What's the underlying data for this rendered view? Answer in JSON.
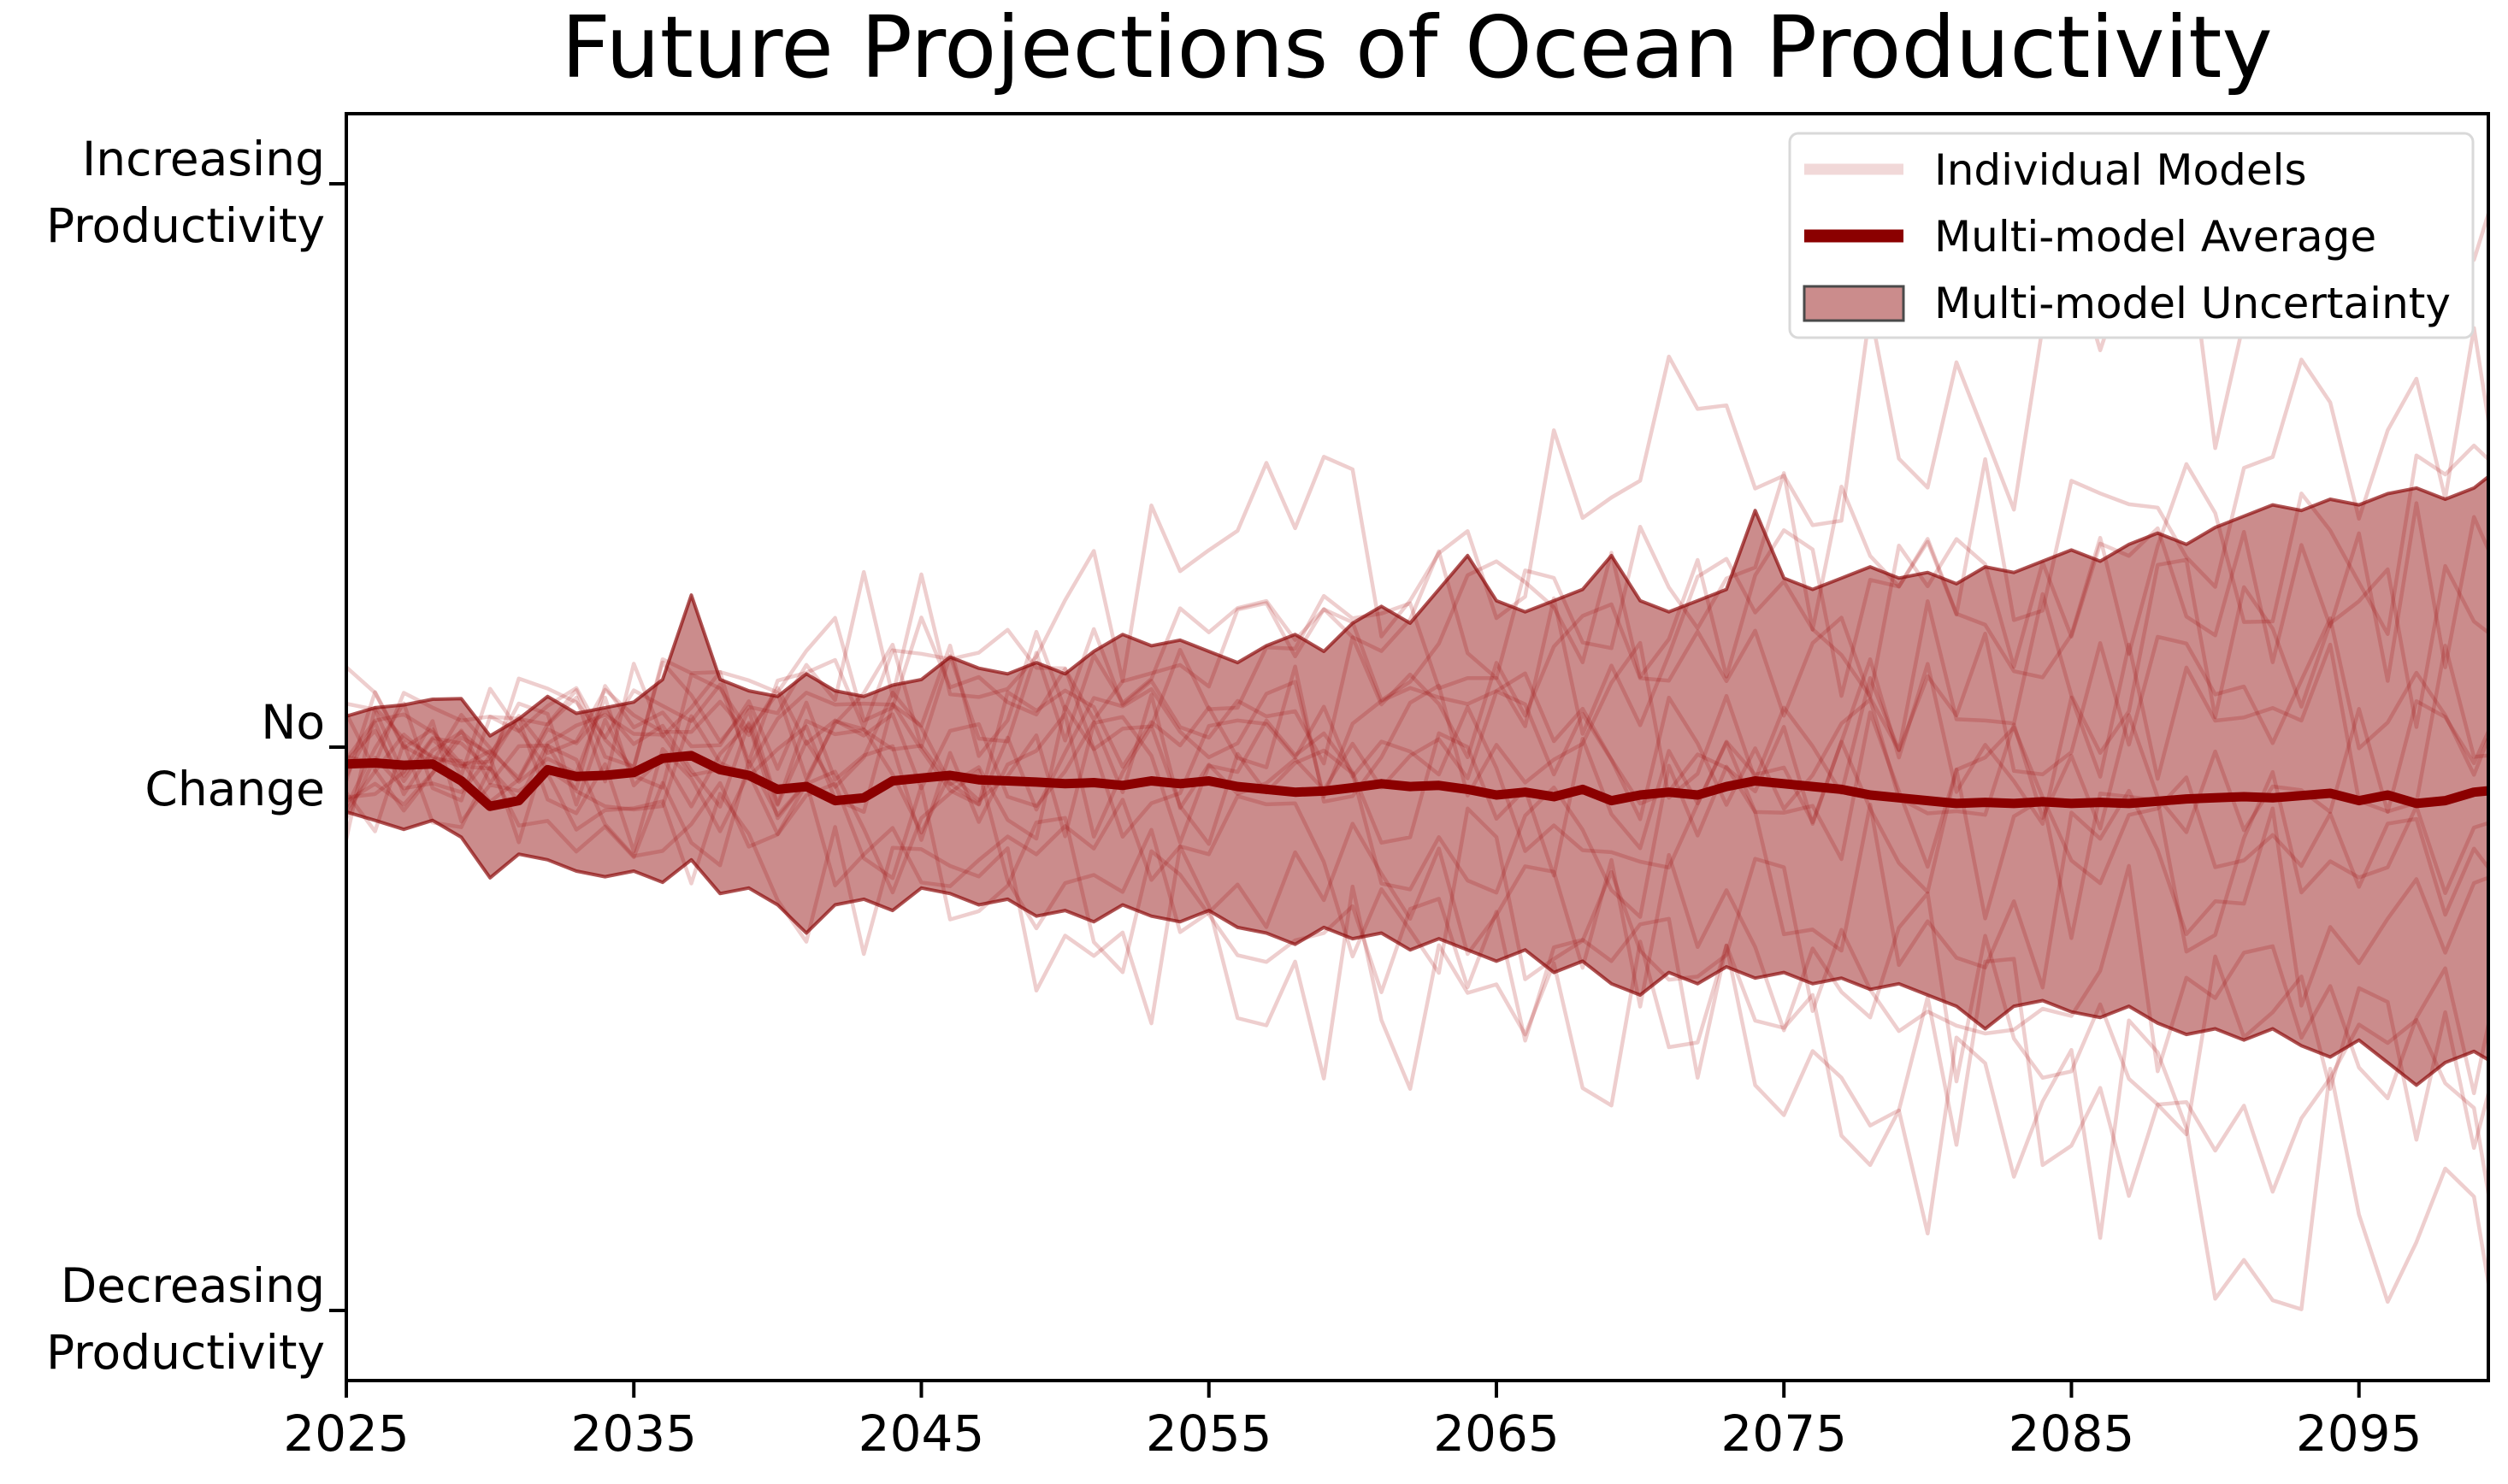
{
  "chart_data": {
    "type": "line",
    "title": "Future Projections of Ocean Productivity",
    "x_start": 2025,
    "x_end": 2100,
    "x_step": 1,
    "xlim": [
      2025,
      2099.5
    ],
    "ylim": [
      -1.125,
      1.131
    ],
    "grid": false,
    "xticks": [
      2025,
      2035,
      2045,
      2055,
      2065,
      2075,
      2085,
      2095
    ],
    "yticks": [
      {
        "value": 1,
        "lines": [
          "Increasing",
          "Productivity"
        ]
      },
      {
        "value": 0,
        "lines": [
          "No",
          "Change"
        ]
      },
      {
        "value": -1,
        "lines": [
          "Decreasing",
          "Productivity"
        ]
      }
    ],
    "colors": {
      "mean_line": "#8b0000",
      "band_fill": "rgba(139,0,0,0.45)",
      "band_edge": "rgba(139,10,10,0.7)",
      "individual_line": "rgba(178,34,34,0.22)",
      "spine": "#000000",
      "legend_individual_swatch": "#f1d8d8",
      "legend_mean_swatch": "#8b0000",
      "legend_band_swatch_fill": "#cb8c8c",
      "legend_band_swatch_edge": "#4a4a4a",
      "legend_border": "#d9d9d9"
    },
    "legend": {
      "position": "upper right",
      "entries": [
        {
          "label": "Individual Models",
          "swatch": "line"
        },
        {
          "label": "Multi-model Average",
          "swatch": "line"
        },
        {
          "label": "Multi-model Uncertainty",
          "swatch": "patch"
        }
      ]
    },
    "mean": [
      -0.03,
      -0.028,
      -0.032,
      -0.03,
      -0.06,
      -0.105,
      -0.095,
      -0.04,
      -0.052,
      -0.05,
      -0.045,
      -0.02,
      -0.015,
      -0.04,
      -0.05,
      -0.075,
      -0.07,
      -0.095,
      -0.09,
      -0.06,
      -0.055,
      -0.05,
      -0.058,
      -0.06,
      -0.062,
      -0.065,
      -0.063,
      -0.068,
      -0.06,
      -0.065,
      -0.06,
      -0.07,
      -0.075,
      -0.08,
      -0.078,
      -0.072,
      -0.065,
      -0.07,
      -0.068,
      -0.075,
      -0.085,
      -0.08,
      -0.088,
      -0.075,
      -0.095,
      -0.085,
      -0.08,
      -0.085,
      -0.07,
      -0.06,
      -0.065,
      -0.07,
      -0.075,
      -0.085,
      -0.09,
      -0.095,
      -0.1,
      -0.098,
      -0.1,
      -0.097,
      -0.1,
      -0.098,
      -0.1,
      -0.096,
      -0.092,
      -0.09,
      -0.088,
      -0.09,
      -0.086,
      -0.082,
      -0.095,
      -0.085,
      -0.1,
      -0.095,
      -0.08,
      -0.075
    ],
    "band_upper": [
      0.055,
      0.07,
      0.075,
      0.085,
      0.086,
      0.02,
      0.05,
      0.09,
      0.06,
      0.07,
      0.08,
      0.12,
      0.27,
      0.12,
      0.1,
      0.09,
      0.13,
      0.1,
      0.09,
      0.11,
      0.12,
      0.16,
      0.14,
      0.13,
      0.15,
      0.13,
      0.17,
      0.2,
      0.18,
      0.19,
      0.17,
      0.15,
      0.18,
      0.2,
      0.17,
      0.22,
      0.25,
      0.22,
      0.28,
      0.34,
      0.26,
      0.24,
      0.26,
      0.28,
      0.34,
      0.26,
      0.24,
      0.26,
      0.28,
      0.42,
      0.3,
      0.28,
      0.3,
      0.32,
      0.3,
      0.31,
      0.29,
      0.32,
      0.31,
      0.33,
      0.35,
      0.33,
      0.36,
      0.38,
      0.36,
      0.39,
      0.41,
      0.43,
      0.42,
      0.44,
      0.43,
      0.45,
      0.46,
      0.44,
      0.46,
      0.5
    ],
    "band_lower": [
      -0.115,
      -0.13,
      -0.146,
      -0.13,
      -0.16,
      -0.232,
      -0.19,
      -0.2,
      -0.22,
      -0.23,
      -0.22,
      -0.24,
      -0.2,
      -0.26,
      -0.25,
      -0.28,
      -0.33,
      -0.28,
      -0.27,
      -0.29,
      -0.25,
      -0.26,
      -0.28,
      -0.27,
      -0.3,
      -0.29,
      -0.31,
      -0.28,
      -0.3,
      -0.31,
      -0.29,
      -0.32,
      -0.33,
      -0.35,
      -0.32,
      -0.34,
      -0.33,
      -0.36,
      -0.34,
      -0.36,
      -0.38,
      -0.36,
      -0.4,
      -0.38,
      -0.42,
      -0.44,
      -0.4,
      -0.42,
      -0.39,
      -0.41,
      -0.4,
      -0.42,
      -0.41,
      -0.43,
      -0.42,
      -0.44,
      -0.46,
      -0.5,
      -0.46,
      -0.45,
      -0.47,
      -0.48,
      -0.46,
      -0.49,
      -0.51,
      -0.5,
      -0.52,
      -0.5,
      -0.53,
      -0.55,
      -0.52,
      -0.56,
      -0.6,
      -0.56,
      -0.54,
      -0.57
    ],
    "individual_models": {
      "note": "15 jagged ensemble traces fanning out from ~0 in 2025; approximated by seeded random walks",
      "count": 15,
      "members": [
        {
          "seed": 7,
          "drift": 0.85,
          "amp": 0.2
        },
        {
          "seed": 12,
          "drift": 0.55,
          "amp": 0.16
        },
        {
          "seed": 23,
          "drift": 0.4,
          "amp": 0.15
        },
        {
          "seed": 31,
          "drift": 0.28,
          "amp": 0.14
        },
        {
          "seed": 44,
          "drift": 0.18,
          "amp": 0.14
        },
        {
          "seed": 52,
          "drift": 0.1,
          "amp": 0.13
        },
        {
          "seed": 63,
          "drift": 0.03,
          "amp": 0.13
        },
        {
          "seed": 71,
          "drift": -0.05,
          "amp": 0.13
        },
        {
          "seed": 85,
          "drift": -0.13,
          "amp": 0.14
        },
        {
          "seed": 91,
          "drift": -0.22,
          "amp": 0.14
        },
        {
          "seed": 104,
          "drift": -0.33,
          "amp": 0.15
        },
        {
          "seed": 118,
          "drift": -0.45,
          "amp": 0.15
        },
        {
          "seed": 126,
          "drift": -0.58,
          "amp": 0.16
        },
        {
          "seed": 139,
          "drift": -0.72,
          "amp": 0.17
        },
        {
          "seed": 147,
          "drift": -0.88,
          "amp": 0.2
        }
      ]
    }
  }
}
